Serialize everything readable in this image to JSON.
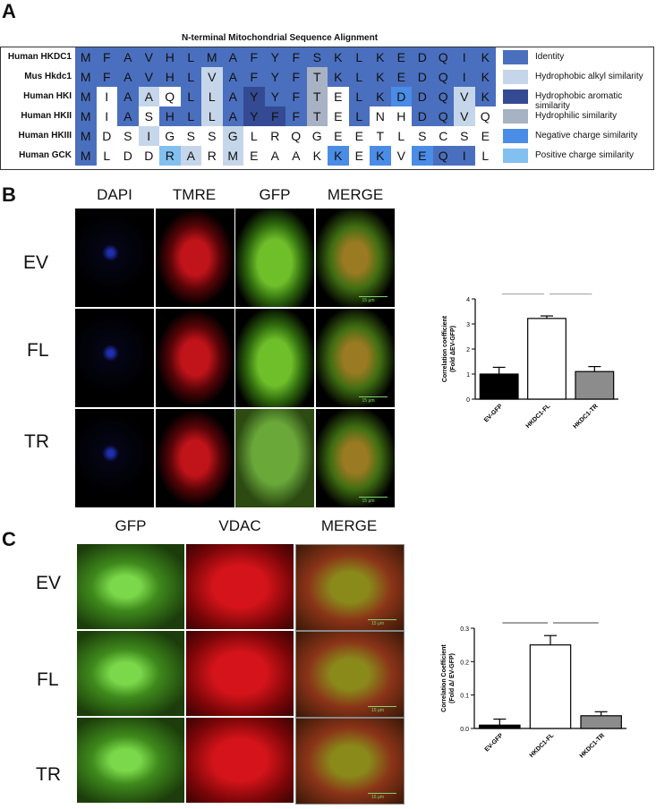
{
  "panel_a": {
    "letter": "A",
    "title": "N-terminal Mitochondrial Sequence Alignment",
    "colors": {
      "I": "#4a6fbe",
      "A": "#c6d6ea",
      "R": "#344a93",
      "P": "#a7b2c4",
      "N": "#4a8ce6",
      "S": "#82c0f0",
      "W": "#ffffff"
    },
    "legend": [
      {
        "code": "I",
        "label": "Identity"
      },
      {
        "code": "A",
        "label": "Hydrophobic alkyl similarity"
      },
      {
        "code": "R",
        "label": "Hydrophobic aromatic similarity"
      },
      {
        "code": "P",
        "label": "Hydrophilic similarity"
      },
      {
        "code": "N",
        "label": "Negative charge similarity"
      },
      {
        "code": "S",
        "label": "Positive charge similarity"
      }
    ],
    "rows": [
      {
        "label": "Human HKDC1",
        "seq": [
          "M",
          "F",
          "A",
          "V",
          "H",
          "L",
          "M",
          "A",
          "F",
          "Y",
          "F",
          "S",
          "K",
          "L",
          "K",
          "E",
          "D",
          "Q",
          "I",
          "K"
        ],
        "cls": [
          "I",
          "I",
          "I",
          "I",
          "I",
          "I",
          "I",
          "I",
          "I",
          "I",
          "I",
          "I",
          "I",
          "I",
          "I",
          "I",
          "I",
          "I",
          "I",
          "I"
        ]
      },
      {
        "label": "Mus Hkdc1",
        "seq": [
          "M",
          "F",
          "A",
          "V",
          "H",
          "L",
          "V",
          "A",
          "F",
          "Y",
          "F",
          "T",
          "K",
          "L",
          "K",
          "E",
          "D",
          "Q",
          "I",
          "K"
        ],
        "cls": [
          "I",
          "I",
          "I",
          "I",
          "I",
          "I",
          "A",
          "I",
          "I",
          "I",
          "I",
          "P",
          "I",
          "I",
          "I",
          "I",
          "I",
          "I",
          "I",
          "I"
        ]
      },
      {
        "label": "Human HKI",
        "seq": [
          "M",
          "I",
          "A",
          "A",
          "Q",
          "L",
          "L",
          "A",
          "Y",
          "Y",
          "F",
          "T",
          "E",
          "L",
          "K",
          "D",
          "D",
          "Q",
          "V",
          "K"
        ],
        "cls": [
          "I",
          "W",
          "I",
          "A",
          "W",
          "I",
          "A",
          "I",
          "R",
          "I",
          "I",
          "P",
          "W",
          "I",
          "I",
          "N",
          "I",
          "I",
          "A",
          "I"
        ]
      },
      {
        "label": "Human HKII",
        "seq": [
          "M",
          "I",
          "A",
          "S",
          "H",
          "L",
          "L",
          "A",
          "Y",
          "F",
          "F",
          "T",
          "E",
          "L",
          "N",
          "H",
          "D",
          "Q",
          "V",
          "Q"
        ],
        "cls": [
          "I",
          "W",
          "I",
          "W",
          "I",
          "I",
          "A",
          "I",
          "R",
          "R",
          "I",
          "P",
          "W",
          "I",
          "W",
          "W",
          "I",
          "I",
          "A",
          "W"
        ]
      },
      {
        "label": "Human HKIII",
        "seq": [
          "M",
          "D",
          "S",
          "I",
          "G",
          "S",
          "S",
          "G",
          "L",
          "R",
          "Q",
          "G",
          "E",
          "E",
          "T",
          "L",
          "S",
          "C",
          "S",
          "E"
        ],
        "cls": [
          "I",
          "W",
          "W",
          "A",
          "W",
          "W",
          "W",
          "A",
          "W",
          "W",
          "W",
          "W",
          "W",
          "W",
          "W",
          "W",
          "W",
          "W",
          "W",
          "W"
        ]
      },
      {
        "label": "Human GCK",
        "seq": [
          "M",
          "L",
          "D",
          "D",
          "R",
          "A",
          "R",
          "M",
          "E",
          "A",
          "A",
          "K",
          "K",
          "E",
          "K",
          "V",
          "E",
          "Q",
          "I",
          "L"
        ],
        "cls": [
          "I",
          "W",
          "W",
          "W",
          "S",
          "A",
          "W",
          "A",
          "W",
          "W",
          "W",
          "W",
          "N",
          "W",
          "N",
          "W",
          "N",
          "I",
          "I",
          "W"
        ]
      }
    ]
  },
  "panel_b": {
    "letter": "B",
    "columns": [
      "DAPI",
      "TMRE",
      "GFP",
      "MERGE"
    ],
    "rows": [
      "EV",
      "FL",
      "TR"
    ],
    "scale_label": "15 μm",
    "chart_data": {
      "type": "bar",
      "categories": [
        "EV-GFP",
        "HKDC1-FL",
        "HKDC1-TR"
      ],
      "values": [
        1.0,
        3.22,
        1.1
      ],
      "errors": [
        0.27,
        0.1,
        0.2
      ],
      "bar_colors": [
        "#000000",
        "#ffffff",
        "#8c8c8c"
      ],
      "ylabel": "Correlation coefficient (Fold ΔEV-GFP)",
      "ylim": [
        0,
        4
      ],
      "yticks": [
        "0",
        "1",
        "2",
        "3",
        "4"
      ],
      "significance": [
        "***",
        "***"
      ]
    }
  },
  "panel_c": {
    "letter": "C",
    "columns": [
      "GFP",
      "VDAC",
      "MERGE"
    ],
    "rows": [
      "EV",
      "FL",
      "TR"
    ],
    "scale_label": "15 μm",
    "chart_data": {
      "type": "bar",
      "categories": [
        "EV-GFP",
        "HKDC1-FL",
        "HKDC1-TR"
      ],
      "values": [
        0.01,
        0.25,
        0.038
      ],
      "errors": [
        0.018,
        0.028,
        0.012
      ],
      "bar_colors": [
        "#000000",
        "#ffffff",
        "#8c8c8c"
      ],
      "ylabel": "Correlation Coefficient (Fold Δ/ EV-GFP)",
      "ylim": [
        0,
        0.3
      ],
      "yticks": [
        "0.0",
        "0.1",
        "0.2",
        "0.3"
      ],
      "significance": [
        "****",
        "****"
      ]
    }
  }
}
